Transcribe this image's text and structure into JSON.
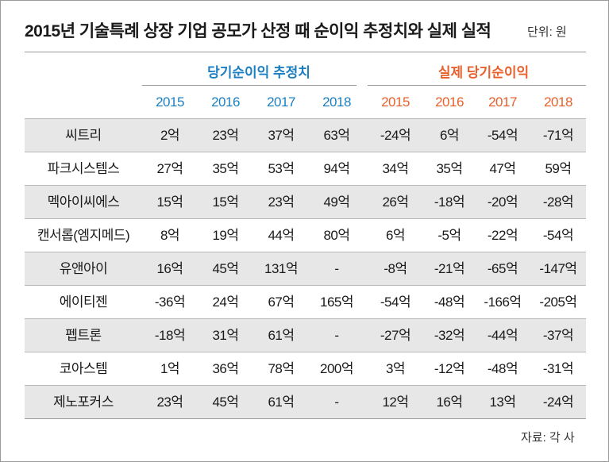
{
  "title": "2015년 기술특례 상장 기업 공모가 산정 때 순이익 추정치와 실제 실적",
  "unit": "단위: 원",
  "groups": {
    "estimate": "당기순이익 추정치",
    "actual": "실제 당기순이익"
  },
  "years": {
    "estimate": [
      "2015",
      "2016",
      "2017",
      "2018"
    ],
    "actual": [
      "2015",
      "2016",
      "2017",
      "2018"
    ]
  },
  "colors": {
    "estimate": "#1b7fc2",
    "actual": "#e8602c",
    "shade": "#e7e7e7"
  },
  "rows": [
    {
      "name": "씨트리",
      "estimate": [
        "2억",
        "23억",
        "37억",
        "63억"
      ],
      "actual": [
        "-24억",
        "6억",
        "-54억",
        "-71억"
      ]
    },
    {
      "name": "파크시스템스",
      "estimate": [
        "27억",
        "35억",
        "53억",
        "94억"
      ],
      "actual": [
        "34억",
        "35억",
        "47억",
        "59억"
      ]
    },
    {
      "name": "멕아이씨에스",
      "estimate": [
        "15억",
        "15억",
        "23억",
        "49억"
      ],
      "actual": [
        "26억",
        "-18억",
        "-20억",
        "-28억"
      ]
    },
    {
      "name": "캔서롭(엠지메드)",
      "estimate": [
        "8억",
        "19억",
        "44억",
        "80억"
      ],
      "actual": [
        "6억",
        "-5억",
        "-22억",
        "-54억"
      ]
    },
    {
      "name": "유앤아이",
      "estimate": [
        "16억",
        "45억",
        "131억",
        "-"
      ],
      "actual": [
        "-8억",
        "-21억",
        "-65억",
        "-147억"
      ]
    },
    {
      "name": "에이티젠",
      "estimate": [
        "-36억",
        "24억",
        "67억",
        "165억"
      ],
      "actual": [
        "-54억",
        "-48억",
        "-166억",
        "-205억"
      ]
    },
    {
      "name": "펩트론",
      "estimate": [
        "-18억",
        "31억",
        "61억",
        "-"
      ],
      "actual": [
        "-27억",
        "-32억",
        "-44억",
        "-37억"
      ]
    },
    {
      "name": "코아스템",
      "estimate": [
        "1억",
        "36억",
        "78억",
        "200억"
      ],
      "actual": [
        "3억",
        "-12억",
        "-48억",
        "-31억"
      ]
    },
    {
      "name": "제노포커스",
      "estimate": [
        "23억",
        "45억",
        "61억",
        "-"
      ],
      "actual": [
        "12억",
        "16억",
        "13억",
        "-24억"
      ]
    }
  ],
  "source": "자료: 각 사"
}
